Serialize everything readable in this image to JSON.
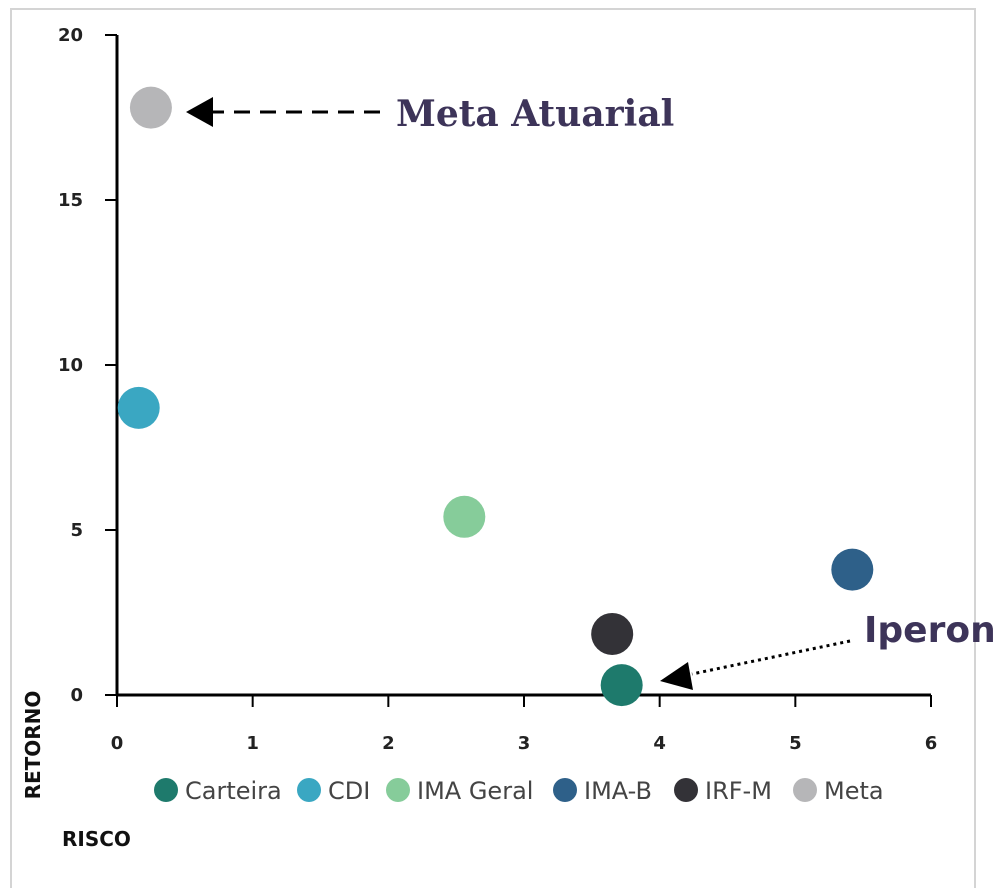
{
  "chart_data": {
    "type": "scatter",
    "xlabel": "RISCO",
    "ylabel": "RETORNO",
    "xlim": [
      0,
      6
    ],
    "ylim": [
      0,
      20
    ],
    "x_ticks": [
      0,
      1,
      2,
      3,
      4,
      5,
      6
    ],
    "y_ticks": [
      0,
      5,
      10,
      15,
      20
    ],
    "grid": false,
    "legend_position": "bottom",
    "series": [
      {
        "name": "Carteira",
        "x": 3.72,
        "y": 0.3,
        "color": "#1e7a6c"
      },
      {
        "name": "CDI",
        "x": 0.16,
        "y": 8.7,
        "color": "#3aa7c2"
      },
      {
        "name": "IMA Geral",
        "x": 2.56,
        "y": 5.4,
        "color": "#86cc9a"
      },
      {
        "name": "IMA-B",
        "x": 5.42,
        "y": 3.8,
        "color": "#2e6089"
      },
      {
        "name": "IRF-M",
        "x": 3.65,
        "y": 1.85,
        "color": "#333237"
      },
      {
        "name": "Meta",
        "x": 0.25,
        "y": 17.8,
        "color": "#b6b6b8"
      }
    ],
    "annotations": [
      {
        "text": "Meta Atuarial",
        "points_to": "Meta",
        "style": "dashed"
      },
      {
        "text": "Iperon",
        "points_to": "Carteira",
        "style": "dotted"
      }
    ]
  }
}
